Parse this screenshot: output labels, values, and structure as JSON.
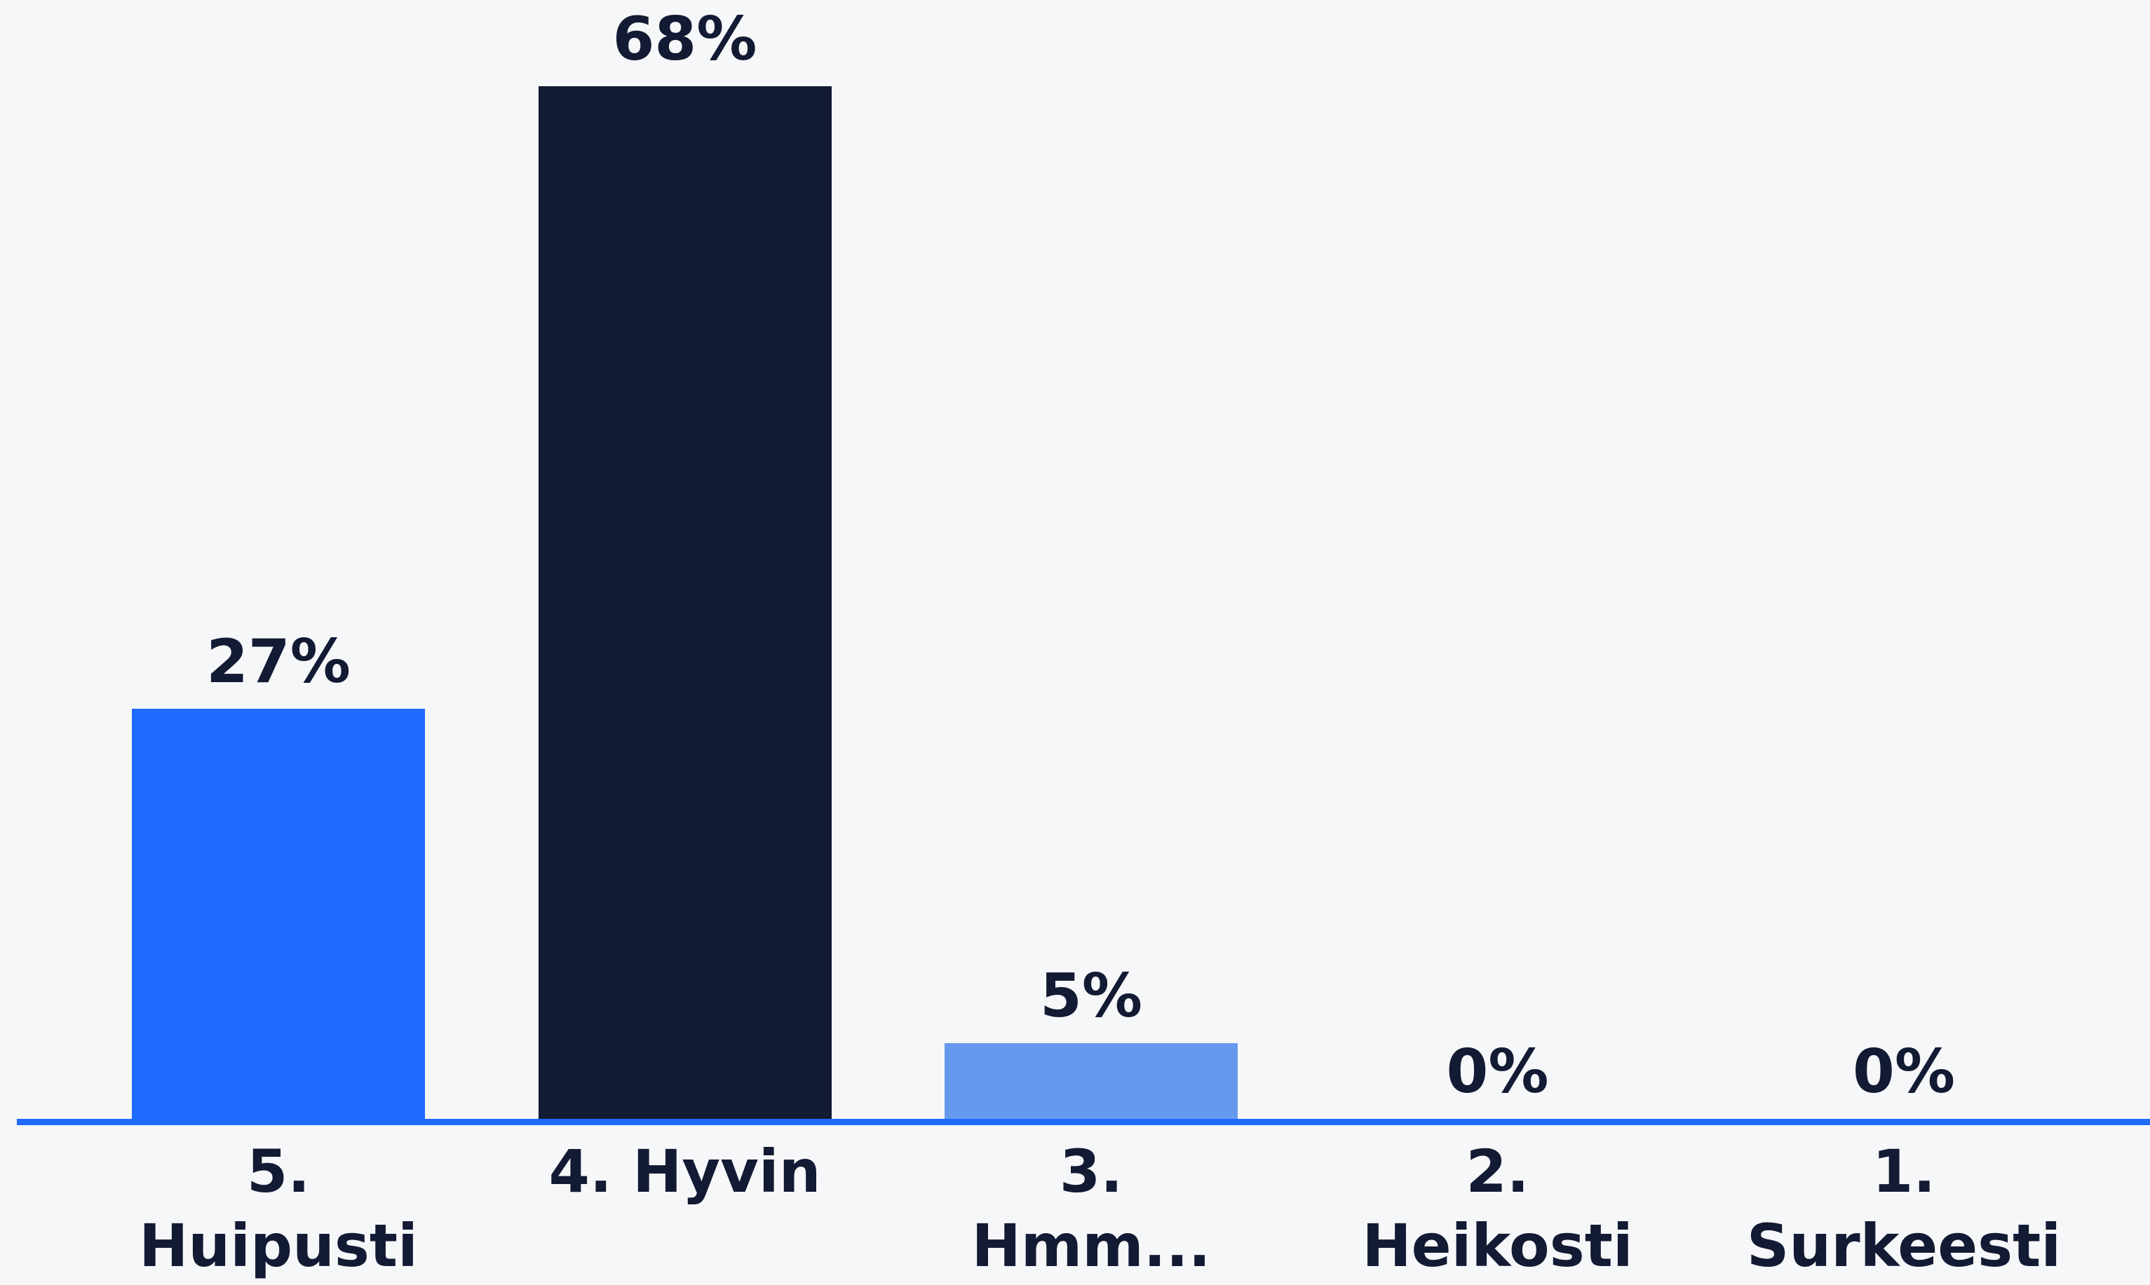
{
  "chart_data": {
    "type": "bar",
    "categories": [
      "5. Huipusti",
      "4. Hyvin",
      "3. Hmm...",
      "2. Heikosti",
      "1. Surkeesti"
    ],
    "values": [
      27,
      68,
      5,
      0,
      0
    ],
    "value_labels": [
      "27%",
      "68%",
      "5%",
      "0%",
      "0%"
    ],
    "colors": [
      "#1f6bff",
      "#131a33",
      "#6699ee",
      "#8fb3f5",
      "#b8cdf7"
    ]
  }
}
